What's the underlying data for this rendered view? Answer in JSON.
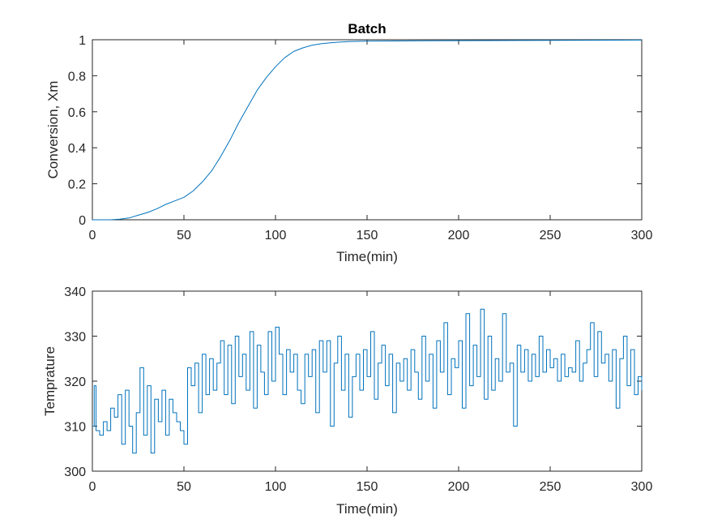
{
  "chart_data": [
    {
      "type": "line",
      "title": "Batch",
      "xlabel": "Time(min)",
      "ylabel": "Conversion, Xm",
      "xlim": [
        0,
        300
      ],
      "ylim": [
        0,
        1
      ],
      "xticks": [
        0,
        50,
        100,
        150,
        200,
        250,
        300
      ],
      "yticks": [
        0,
        0.2,
        0.4,
        0.6,
        0.8,
        1
      ],
      "ytick_labels": [
        "0",
        "0.2",
        "0.4",
        "0.6",
        "0.8",
        "1"
      ],
      "grid": false,
      "color": "#0072BD",
      "series": [
        {
          "x": [
            0,
            10,
            15,
            20,
            25,
            30,
            35,
            40,
            45,
            50,
            55,
            60,
            65,
            70,
            75,
            80,
            85,
            90,
            95,
            100,
            105,
            110,
            115,
            120,
            125,
            130,
            135,
            140,
            150,
            160,
            180,
            200,
            250,
            300
          ],
          "y": [
            0,
            0.0,
            0.003,
            0.01,
            0.025,
            0.04,
            0.06,
            0.085,
            0.105,
            0.125,
            0.16,
            0.21,
            0.27,
            0.35,
            0.44,
            0.54,
            0.63,
            0.72,
            0.79,
            0.85,
            0.9,
            0.935,
            0.955,
            0.97,
            0.978,
            0.983,
            0.987,
            0.99,
            0.992,
            0.993,
            0.994,
            0.995,
            0.997,
            0.998
          ]
        }
      ]
    },
    {
      "type": "line",
      "title": "",
      "xlabel": "Time(min)",
      "ylabel": "Temprature",
      "xlim": [
        0,
        300
      ],
      "ylim": [
        300,
        340
      ],
      "xticks": [
        0,
        50,
        100,
        150,
        200,
        250,
        300
      ],
      "yticks": [
        300,
        310,
        320,
        330,
        340
      ],
      "ytick_labels": [
        "300",
        "310",
        "320",
        "330",
        "340"
      ],
      "grid": false,
      "step": true,
      "color": "#0072BD",
      "series": [
        {
          "x": [
            0,
            1,
            2,
            4,
            6,
            8,
            10,
            12,
            14,
            16,
            18,
            20,
            22,
            24,
            26,
            28,
            30,
            32,
            34,
            36,
            38,
            40,
            42,
            44,
            46,
            48,
            50,
            52,
            54,
            56,
            58,
            60,
            62,
            64,
            66,
            68,
            70,
            72,
            74,
            76,
            78,
            80,
            82,
            84,
            86,
            88,
            90,
            92,
            94,
            96,
            98,
            100,
            102,
            104,
            106,
            108,
            110,
            112,
            114,
            116,
            118,
            120,
            122,
            124,
            126,
            128,
            130,
            132,
            134,
            136,
            138,
            140,
            142,
            144,
            146,
            148,
            150,
            152,
            154,
            156,
            158,
            160,
            162,
            164,
            166,
            168,
            170,
            172,
            174,
            176,
            178,
            180,
            182,
            184,
            186,
            188,
            190,
            192,
            194,
            196,
            198,
            200,
            202,
            204,
            206,
            208,
            210,
            212,
            214,
            216,
            218,
            220,
            222,
            224,
            226,
            228,
            230,
            232,
            234,
            236,
            238,
            240,
            242,
            244,
            246,
            248,
            250,
            252,
            254,
            256,
            258,
            260,
            262,
            264,
            266,
            268,
            270,
            272,
            274,
            276,
            278,
            280,
            282,
            284,
            286,
            288,
            290,
            292,
            294,
            296,
            298,
            300
          ],
          "y": [
            310,
            319,
            309,
            308,
            311,
            309,
            314,
            312,
            317,
            306,
            318,
            310,
            304,
            313,
            323,
            308,
            319,
            304,
            316,
            311,
            318,
            308,
            316,
            313,
            311,
            309,
            306,
            323,
            319,
            324,
            313,
            326,
            317,
            325,
            318,
            324,
            329,
            317,
            328,
            315,
            330,
            321,
            326,
            318,
            331,
            314,
            328,
            322,
            317,
            331,
            320,
            332,
            326,
            317,
            327,
            322,
            326,
            318,
            315,
            326,
            321,
            327,
            313,
            329,
            322,
            329,
            310,
            324,
            330,
            318,
            326,
            312,
            321,
            326,
            318,
            327,
            321,
            331,
            316,
            324,
            328,
            319,
            326,
            313,
            324,
            320,
            325,
            318,
            327,
            322,
            316,
            330,
            320,
            326,
            314,
            329,
            322,
            333,
            317,
            325,
            323,
            329,
            314,
            335,
            319,
            328,
            321,
            336,
            316,
            330,
            318,
            325,
            320,
            335,
            322,
            324,
            310,
            328,
            322,
            327,
            320,
            326,
            321,
            330,
            322,
            327,
            323,
            325,
            320,
            326,
            321,
            323,
            322,
            329,
            320,
            324,
            327,
            333,
            321,
            331,
            324,
            326,
            320,
            327,
            314,
            325,
            330,
            319,
            327,
            317,
            321,
            318
          ]
        }
      ]
    }
  ]
}
